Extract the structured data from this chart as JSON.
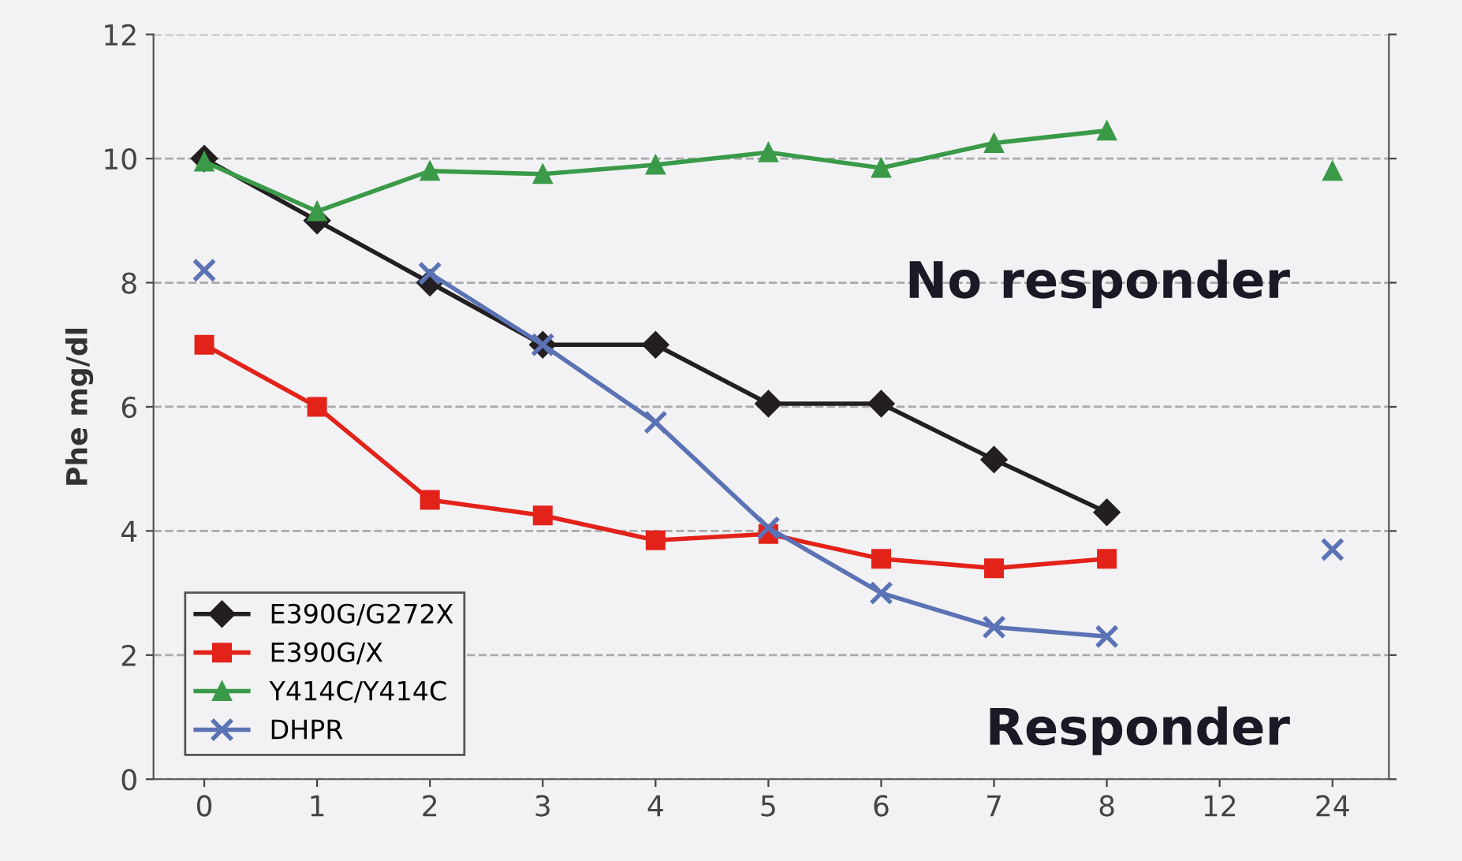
{
  "chart_data": {
    "type": "line",
    "ylabel": "Phe mg/dl",
    "categories": [
      "0",
      "1",
      "2",
      "3",
      "4",
      "5",
      "6",
      "7",
      "8",
      "12",
      "24"
    ],
    "series": [
      {
        "name": "E390G/G272X",
        "color": "#231f20",
        "marker": "diamond",
        "values": [
          10,
          9,
          8,
          7,
          7,
          6.05,
          6.05,
          5.15,
          4.3,
          null,
          null
        ]
      },
      {
        "name": "E390G/X",
        "color": "#e32219",
        "marker": "square",
        "values": [
          7,
          6,
          4.5,
          4.25,
          3.85,
          3.95,
          3.55,
          3.4,
          3.55,
          null,
          null
        ]
      },
      {
        "name": "Y414C/Y414C",
        "color": "#3a9a48",
        "marker": "triangle",
        "values": [
          9.95,
          9.15,
          9.8,
          9.75,
          9.9,
          10.1,
          9.85,
          10.25,
          10.45,
          null,
          9.8
        ]
      },
      {
        "name": "DHPR",
        "color": "#5b72b5",
        "marker": "cross",
        "values": [
          8.2,
          null,
          8.15,
          7.0,
          5.75,
          4.05,
          3.0,
          2.45,
          2.3,
          null,
          3.7
        ]
      }
    ],
    "ylim": [
      0,
      12
    ],
    "yticks": [
      0,
      2,
      4,
      6,
      8,
      10,
      12
    ],
    "grid": "y",
    "legend": "bottom left",
    "line_style": "solid",
    "annotations": [
      "No responder",
      "Responder"
    ]
  }
}
